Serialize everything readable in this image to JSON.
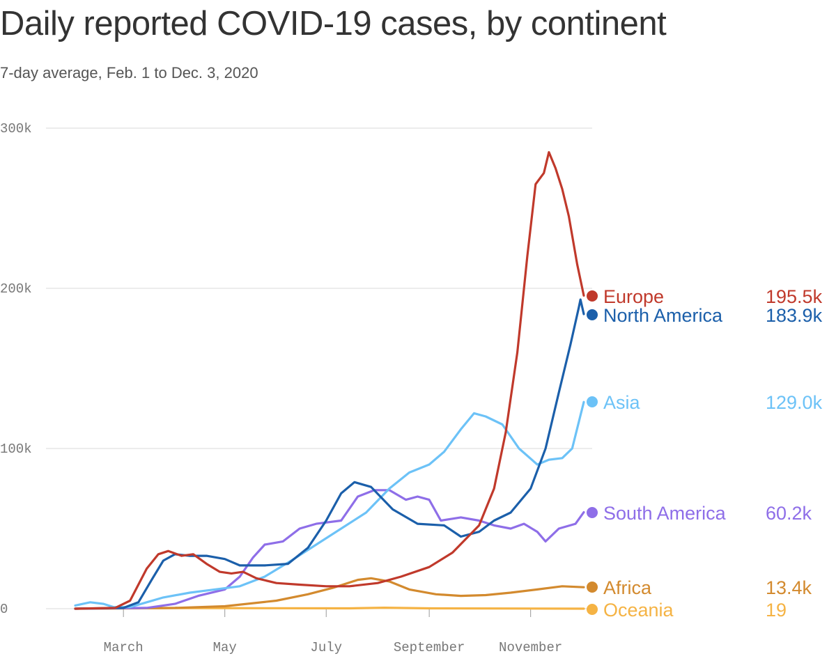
{
  "title": "Daily reported COVID-19 cases, by continent",
  "subtitle": "7-day average, Feb. 1 to Dec. 3, 2020",
  "chart_data": {
    "type": "line",
    "title": "Daily reported COVID-19 cases, by continent",
    "subtitle": "7-day average, Feb. 1 to Dec. 3, 2020",
    "xlabel": "",
    "ylabel": "",
    "x_range": [
      "2020-02-01",
      "2020-12-03"
    ],
    "ylim": [
      0,
      300000
    ],
    "y_ticks": [
      0,
      100000,
      200000,
      300000
    ],
    "y_tick_labels": [
      "0",
      "100k",
      "200k",
      "300k"
    ],
    "x_ticks": [
      "2020-03-01",
      "2020-05-01",
      "2020-07-01",
      "2020-09-01",
      "2020-11-01"
    ],
    "x_tick_labels": [
      "March",
      "May",
      "July",
      "September",
      "November"
    ],
    "grid": "horizontal",
    "legend": "direct labels at line ends (right)",
    "series": [
      {
        "name": "Europe",
        "color": "#c0392b",
        "end_value_label": "195.5k",
        "points": [
          [
            "2020-02-01",
            0
          ],
          [
            "2020-02-25",
            500
          ],
          [
            "2020-03-05",
            5000
          ],
          [
            "2020-03-15",
            25000
          ],
          [
            "2020-03-22",
            34000
          ],
          [
            "2020-03-28",
            36000
          ],
          [
            "2020-04-05",
            33000
          ],
          [
            "2020-04-12",
            34000
          ],
          [
            "2020-04-20",
            28000
          ],
          [
            "2020-04-28",
            23000
          ],
          [
            "2020-05-05",
            22000
          ],
          [
            "2020-05-12",
            23000
          ],
          [
            "2020-05-20",
            19000
          ],
          [
            "2020-06-01",
            16000
          ],
          [
            "2020-06-15",
            15000
          ],
          [
            "2020-07-01",
            14000
          ],
          [
            "2020-07-15",
            14000
          ],
          [
            "2020-08-01",
            16000
          ],
          [
            "2020-08-15",
            20000
          ],
          [
            "2020-09-01",
            26000
          ],
          [
            "2020-09-15",
            35000
          ],
          [
            "2020-10-01",
            52000
          ],
          [
            "2020-10-10",
            75000
          ],
          [
            "2020-10-17",
            110000
          ],
          [
            "2020-10-24",
            160000
          ],
          [
            "2020-10-30",
            220000
          ],
          [
            "2020-11-04",
            265000
          ],
          [
            "2020-11-09",
            272000
          ],
          [
            "2020-11-12",
            285000
          ],
          [
            "2020-11-16",
            275000
          ],
          [
            "2020-11-20",
            262000
          ],
          [
            "2020-11-24",
            245000
          ],
          [
            "2020-11-29",
            215000
          ],
          [
            "2020-12-03",
            195500
          ]
        ]
      },
      {
        "name": "North America",
        "color": "#1b5faa",
        "end_value_label": "183.9k",
        "points": [
          [
            "2020-02-01",
            0
          ],
          [
            "2020-03-01",
            500
          ],
          [
            "2020-03-10",
            4000
          ],
          [
            "2020-03-18",
            18000
          ],
          [
            "2020-03-25",
            30000
          ],
          [
            "2020-04-01",
            34000
          ],
          [
            "2020-04-10",
            33000
          ],
          [
            "2020-04-20",
            33000
          ],
          [
            "2020-05-01",
            31000
          ],
          [
            "2020-05-10",
            27000
          ],
          [
            "2020-05-25",
            27000
          ],
          [
            "2020-06-08",
            28000
          ],
          [
            "2020-06-20",
            38000
          ],
          [
            "2020-07-01",
            55000
          ],
          [
            "2020-07-10",
            72000
          ],
          [
            "2020-07-18",
            79000
          ],
          [
            "2020-07-28",
            76000
          ],
          [
            "2020-08-10",
            62000
          ],
          [
            "2020-08-25",
            53000
          ],
          [
            "2020-09-10",
            52000
          ],
          [
            "2020-09-20",
            45000
          ],
          [
            "2020-10-01",
            48000
          ],
          [
            "2020-10-10",
            55000
          ],
          [
            "2020-10-20",
            60000
          ],
          [
            "2020-11-01",
            75000
          ],
          [
            "2020-11-10",
            100000
          ],
          [
            "2020-11-18",
            135000
          ],
          [
            "2020-11-25",
            165000
          ],
          [
            "2020-11-30",
            188000
          ],
          [
            "2020-12-01",
            193000
          ],
          [
            "2020-12-03",
            183900
          ]
        ]
      },
      {
        "name": "Asia",
        "color": "#6cc2f7",
        "end_value_label": "129.0k",
        "points": [
          [
            "2020-02-01",
            2000
          ],
          [
            "2020-02-10",
            4000
          ],
          [
            "2020-02-18",
            3000
          ],
          [
            "2020-02-24",
            1000
          ],
          [
            "2020-03-05",
            1000
          ],
          [
            "2020-03-15",
            4000
          ],
          [
            "2020-03-25",
            7000
          ],
          [
            "2020-04-10",
            10000
          ],
          [
            "2020-04-25",
            12000
          ],
          [
            "2020-05-10",
            14000
          ],
          [
            "2020-05-25",
            20000
          ],
          [
            "2020-06-10",
            30000
          ],
          [
            "2020-06-25",
            40000
          ],
          [
            "2020-07-10",
            50000
          ],
          [
            "2020-07-25",
            60000
          ],
          [
            "2020-08-08",
            75000
          ],
          [
            "2020-08-20",
            85000
          ],
          [
            "2020-09-01",
            90000
          ],
          [
            "2020-09-10",
            98000
          ],
          [
            "2020-09-20",
            112000
          ],
          [
            "2020-09-28",
            122000
          ],
          [
            "2020-10-05",
            120000
          ],
          [
            "2020-10-15",
            115000
          ],
          [
            "2020-10-25",
            100000
          ],
          [
            "2020-11-05",
            90000
          ],
          [
            "2020-11-12",
            93000
          ],
          [
            "2020-11-20",
            94000
          ],
          [
            "2020-11-26",
            100000
          ],
          [
            "2020-12-03",
            129000
          ]
        ]
      },
      {
        "name": "South America",
        "color": "#8e6ee8",
        "end_value_label": "60.2k",
        "points": [
          [
            "2020-02-01",
            0
          ],
          [
            "2020-03-15",
            500
          ],
          [
            "2020-04-01",
            3000
          ],
          [
            "2020-04-15",
            8000
          ],
          [
            "2020-05-01",
            12000
          ],
          [
            "2020-05-10",
            20000
          ],
          [
            "2020-05-18",
            32000
          ],
          [
            "2020-05-25",
            40000
          ],
          [
            "2020-06-05",
            42000
          ],
          [
            "2020-06-15",
            50000
          ],
          [
            "2020-06-25",
            53000
          ],
          [
            "2020-07-10",
            55000
          ],
          [
            "2020-07-20",
            70000
          ],
          [
            "2020-07-30",
            74000
          ],
          [
            "2020-08-08",
            74000
          ],
          [
            "2020-08-18",
            68000
          ],
          [
            "2020-08-25",
            70000
          ],
          [
            "2020-09-01",
            68000
          ],
          [
            "2020-09-08",
            55000
          ],
          [
            "2020-09-20",
            57000
          ],
          [
            "2020-10-01",
            55000
          ],
          [
            "2020-10-10",
            52000
          ],
          [
            "2020-10-20",
            50000
          ],
          [
            "2020-10-28",
            53000
          ],
          [
            "2020-11-05",
            48000
          ],
          [
            "2020-11-10",
            42000
          ],
          [
            "2020-11-18",
            50000
          ],
          [
            "2020-11-28",
            53000
          ],
          [
            "2020-12-03",
            60200
          ]
        ]
      },
      {
        "name": "Africa",
        "color": "#d38a2e",
        "end_value_label": "13.4k",
        "points": [
          [
            "2020-02-01",
            0
          ],
          [
            "2020-04-01",
            500
          ],
          [
            "2020-05-01",
            1500
          ],
          [
            "2020-06-01",
            5000
          ],
          [
            "2020-06-20",
            9000
          ],
          [
            "2020-07-05",
            13000
          ],
          [
            "2020-07-20",
            18000
          ],
          [
            "2020-07-28",
            19000
          ],
          [
            "2020-08-08",
            17000
          ],
          [
            "2020-08-20",
            12000
          ],
          [
            "2020-09-05",
            9000
          ],
          [
            "2020-09-20",
            8000
          ],
          [
            "2020-10-05",
            8500
          ],
          [
            "2020-10-20",
            10000
          ],
          [
            "2020-11-05",
            12000
          ],
          [
            "2020-11-20",
            14000
          ],
          [
            "2020-12-03",
            13400
          ]
        ]
      },
      {
        "name": "Oceania",
        "color": "#f5b344",
        "end_value_label": "19",
        "points": [
          [
            "2020-02-01",
            0
          ],
          [
            "2020-04-01",
            400
          ],
          [
            "2020-07-15",
            200
          ],
          [
            "2020-08-05",
            600
          ],
          [
            "2020-09-01",
            200
          ],
          [
            "2020-12-03",
            19
          ]
        ]
      }
    ]
  }
}
